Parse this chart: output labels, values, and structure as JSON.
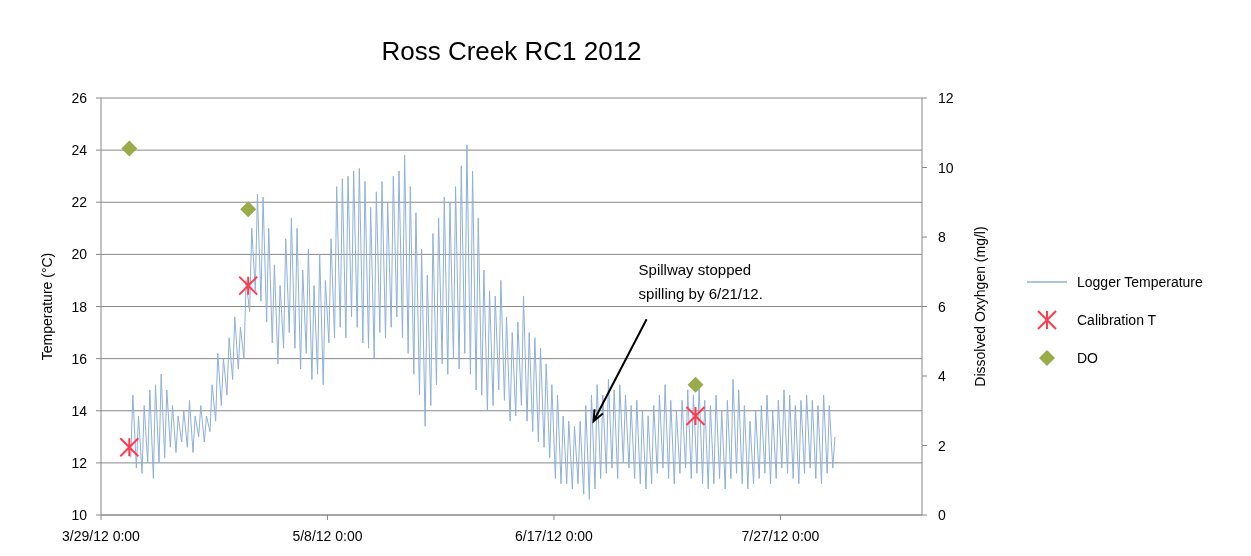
{
  "chart_data": {
    "type": "line",
    "title": "Ross Creek RC1 2012",
    "ylabel": "Temperature (°C)",
    "y2label": "Dissolved Oxyhgen (mg/l)",
    "xlim": [
      "2012-03-29",
      "2012-08-21"
    ],
    "xticks": [
      {
        "value": "2012-03-29",
        "label": "3/29/12 0:00"
      },
      {
        "value": "2012-05-08",
        "label": "5/8/12 0:00"
      },
      {
        "value": "2012-06-17",
        "label": "6/17/12 0:00"
      },
      {
        "value": "2012-07-27",
        "label": "7/27/12 0:00"
      }
    ],
    "ylim": [
      10,
      26
    ],
    "yticks": [
      10,
      12,
      14,
      16,
      18,
      20,
      22,
      24,
      26
    ],
    "y2lim": [
      0,
      12
    ],
    "y2ticks": [
      0,
      2,
      4,
      6,
      8,
      10,
      12
    ],
    "grid": "y",
    "legend": "right",
    "annotations": [
      {
        "text": "Spillway stopped spilling by 6/21/12.",
        "x": "2012-06-24",
        "y": 13.6
      }
    ],
    "series": [
      {
        "name": "Logger Temperature",
        "color": "#8fb0d8",
        "marker": "none",
        "line_style": "solid",
        "x": [
          "2012-04-03T06:00",
          "2012-04-03T15:00",
          "2012-04-04T06:00",
          "2012-04-04T15:00",
          "2012-04-05T06:00",
          "2012-04-05T15:00",
          "2012-04-06T06:00",
          "2012-04-06T15:00",
          "2012-04-07T06:00",
          "2012-04-07T15:00",
          "2012-04-08T06:00",
          "2012-04-08T15:00",
          "2012-04-09T06:00",
          "2012-04-09T15:00",
          "2012-04-10T06:00",
          "2012-04-10T15:00",
          "2012-04-11T06:00",
          "2012-04-11T15:00",
          "2012-04-12T06:00",
          "2012-04-12T15:00",
          "2012-04-13T06:00",
          "2012-04-13T15:00",
          "2012-04-14T06:00",
          "2012-04-14T15:00",
          "2012-04-15T06:00",
          "2012-04-15T15:00",
          "2012-04-16T06:00",
          "2012-04-16T15:00",
          "2012-04-17T06:00",
          "2012-04-17T15:00",
          "2012-04-18T06:00",
          "2012-04-18T15:00",
          "2012-04-19T06:00",
          "2012-04-19T15:00",
          "2012-04-20T06:00",
          "2012-04-20T15:00",
          "2012-04-21T06:00",
          "2012-04-21T15:00",
          "2012-04-22T06:00",
          "2012-04-22T15:00",
          "2012-04-23T06:00",
          "2012-04-23T15:00",
          "2012-04-24T06:00",
          "2012-04-24T15:00",
          "2012-04-25T06:00",
          "2012-04-25T15:00",
          "2012-04-26T06:00",
          "2012-04-26T15:00",
          "2012-04-27T06:00",
          "2012-04-27T15:00",
          "2012-04-28T06:00",
          "2012-04-28T15:00",
          "2012-04-29T06:00",
          "2012-04-29T15:00",
          "2012-04-30T06:00",
          "2012-04-30T15:00",
          "2012-05-01T06:00",
          "2012-05-01T15:00",
          "2012-05-02T06:00",
          "2012-05-02T15:00",
          "2012-05-03T06:00",
          "2012-05-03T15:00",
          "2012-05-04T06:00",
          "2012-05-04T15:00",
          "2012-05-05T06:00",
          "2012-05-05T15:00",
          "2012-05-06T06:00",
          "2012-05-06T15:00",
          "2012-05-07T06:00",
          "2012-05-07T15:00",
          "2012-05-08T06:00",
          "2012-05-08T15:00",
          "2012-05-09T06:00",
          "2012-05-09T15:00",
          "2012-05-10T06:00",
          "2012-05-10T15:00",
          "2012-05-11T06:00",
          "2012-05-11T15:00",
          "2012-05-12T06:00",
          "2012-05-12T15:00",
          "2012-05-13T06:00",
          "2012-05-13T15:00",
          "2012-05-14T06:00",
          "2012-05-14T15:00",
          "2012-05-15T06:00",
          "2012-05-15T15:00",
          "2012-05-16T06:00",
          "2012-05-16T15:00",
          "2012-05-17T06:00",
          "2012-05-17T15:00",
          "2012-05-18T06:00",
          "2012-05-18T15:00",
          "2012-05-19T06:00",
          "2012-05-19T15:00",
          "2012-05-20T06:00",
          "2012-05-20T15:00",
          "2012-05-21T06:00",
          "2012-05-21T15:00",
          "2012-05-22T06:00",
          "2012-05-22T15:00",
          "2012-05-23T06:00",
          "2012-05-23T15:00",
          "2012-05-24T06:00",
          "2012-05-24T15:00",
          "2012-05-25T06:00",
          "2012-05-25T15:00",
          "2012-05-26T06:00",
          "2012-05-26T15:00",
          "2012-05-27T06:00",
          "2012-05-27T15:00",
          "2012-05-28T06:00",
          "2012-05-28T15:00",
          "2012-05-29T06:00",
          "2012-05-29T15:00",
          "2012-05-30T06:00",
          "2012-05-30T15:00",
          "2012-05-31T06:00",
          "2012-05-31T15:00",
          "2012-06-01T06:00",
          "2012-06-01T15:00",
          "2012-06-02T06:00",
          "2012-06-02T15:00",
          "2012-06-03T06:00",
          "2012-06-03T15:00",
          "2012-06-04T06:00",
          "2012-06-04T15:00",
          "2012-06-05T06:00",
          "2012-06-05T15:00",
          "2012-06-06T06:00",
          "2012-06-06T15:00",
          "2012-06-07T06:00",
          "2012-06-07T15:00",
          "2012-06-08T06:00",
          "2012-06-08T15:00",
          "2012-06-09T06:00",
          "2012-06-09T15:00",
          "2012-06-10T06:00",
          "2012-06-10T15:00",
          "2012-06-11T06:00",
          "2012-06-11T15:00",
          "2012-06-12T06:00",
          "2012-06-12T15:00",
          "2012-06-13T06:00",
          "2012-06-13T15:00",
          "2012-06-14T06:00",
          "2012-06-14T15:00",
          "2012-06-15T06:00",
          "2012-06-15T15:00",
          "2012-06-16T06:00",
          "2012-06-16T15:00",
          "2012-06-17T06:00",
          "2012-06-17T15:00",
          "2012-06-18T06:00",
          "2012-06-18T15:00",
          "2012-06-19T06:00",
          "2012-06-19T15:00",
          "2012-06-20T06:00",
          "2012-06-20T15:00",
          "2012-06-21T06:00",
          "2012-06-21T15:00",
          "2012-06-22T06:00",
          "2012-06-22T15:00",
          "2012-06-23T06:00",
          "2012-06-23T15:00",
          "2012-06-24T06:00",
          "2012-06-24T15:00",
          "2012-06-25T06:00",
          "2012-06-25T15:00",
          "2012-06-26T06:00",
          "2012-06-26T15:00",
          "2012-06-27T06:00",
          "2012-06-27T15:00",
          "2012-06-28T06:00",
          "2012-06-28T15:00",
          "2012-06-29T06:00",
          "2012-06-29T15:00",
          "2012-06-30T06:00",
          "2012-06-30T15:00",
          "2012-07-01T06:00",
          "2012-07-01T15:00",
          "2012-07-02T06:00",
          "2012-07-02T15:00",
          "2012-07-03T06:00",
          "2012-07-03T15:00",
          "2012-07-04T06:00",
          "2012-07-04T15:00",
          "2012-07-05T06:00",
          "2012-07-05T15:00",
          "2012-07-06T06:00",
          "2012-07-06T15:00",
          "2012-07-07T06:00",
          "2012-07-07T15:00",
          "2012-07-08T06:00",
          "2012-07-08T15:00",
          "2012-07-09T06:00",
          "2012-07-09T15:00",
          "2012-07-10T06:00",
          "2012-07-10T15:00",
          "2012-07-11T06:00",
          "2012-07-11T15:00",
          "2012-07-12T06:00",
          "2012-07-12T15:00",
          "2012-07-13T06:00",
          "2012-07-13T15:00",
          "2012-07-14T06:00",
          "2012-07-14T15:00",
          "2012-07-15T06:00",
          "2012-07-15T15:00",
          "2012-07-16T06:00",
          "2012-07-16T15:00",
          "2012-07-17T06:00",
          "2012-07-17T15:00",
          "2012-07-18T06:00",
          "2012-07-18T15:00",
          "2012-07-19T06:00",
          "2012-07-19T15:00",
          "2012-07-20T06:00",
          "2012-07-20T15:00",
          "2012-07-21T06:00",
          "2012-07-21T15:00",
          "2012-07-22T06:00",
          "2012-07-22T15:00",
          "2012-07-23T06:00",
          "2012-07-23T15:00",
          "2012-07-24T06:00",
          "2012-07-24T15:00",
          "2012-07-25T06:00",
          "2012-07-25T15:00",
          "2012-07-26T06:00",
          "2012-07-26T15:00",
          "2012-07-27T06:00",
          "2012-07-27T15:00",
          "2012-07-28T06:00",
          "2012-07-28T15:00",
          "2012-07-29T06:00",
          "2012-07-29T15:00",
          "2012-07-30T06:00",
          "2012-07-30T15:00",
          "2012-07-31T06:00",
          "2012-07-31T15:00",
          "2012-08-01T06:00",
          "2012-08-01T15:00",
          "2012-08-02T06:00",
          "2012-08-02T15:00",
          "2012-08-03T06:00",
          "2012-08-03T15:00",
          "2012-08-04T06:00",
          "2012-08-04T15:00",
          "2012-08-05T06:00",
          "2012-08-05T15:00"
        ],
        "values": [
          12.2,
          14.6,
          11.8,
          13.8,
          11.6,
          14.2,
          12.0,
          14.8,
          11.4,
          15.0,
          12.0,
          15.4,
          12.2,
          14.8,
          12.6,
          14.2,
          12.4,
          13.8,
          12.8,
          14.0,
          12.6,
          14.4,
          12.4,
          13.8,
          13.0,
          14.2,
          12.8,
          13.8,
          13.2,
          15.0,
          13.6,
          16.2,
          14.2,
          16.0,
          14.6,
          16.8,
          15.2,
          17.6,
          15.6,
          17.2,
          16.0,
          19.0,
          17.8,
          21.0,
          18.6,
          22.3,
          18.2,
          22.2,
          17.4,
          21.0,
          16.6,
          19.6,
          15.8,
          18.8,
          16.4,
          20.6,
          17.0,
          21.4,
          16.4,
          21.0,
          15.6,
          19.4,
          16.2,
          20.2,
          15.2,
          18.8,
          15.4,
          20.0,
          15.0,
          19.0,
          16.6,
          20.6,
          16.8,
          22.6,
          17.2,
          22.9,
          16.8,
          23.0,
          17.6,
          23.2,
          17.2,
          23.3,
          16.6,
          22.8,
          16.4,
          21.8,
          16.0,
          22.4,
          17.0,
          22.8,
          16.8,
          22.0,
          17.2,
          23.0,
          17.6,
          23.2,
          16.8,
          23.8,
          16.2,
          22.6,
          15.4,
          21.6,
          14.6,
          20.2,
          13.4,
          19.2,
          14.2,
          20.8,
          15.0,
          21.4,
          15.8,
          22.2,
          15.4,
          22.0,
          16.0,
          22.6,
          15.6,
          23.4,
          16.2,
          24.2,
          15.4,
          23.2,
          14.8,
          21.4,
          14.6,
          19.4,
          14.0,
          18.6,
          14.2,
          18.4,
          14.8,
          19.0,
          14.4,
          17.6,
          13.6,
          17.0,
          13.8,
          17.4,
          14.2,
          18.4,
          13.6,
          17.0,
          13.2,
          16.8,
          12.8,
          16.4,
          12.6,
          15.8,
          12.2,
          15.0,
          11.4,
          14.6,
          11.2,
          13.8,
          11.2,
          13.6,
          11.0,
          13.4,
          11.2,
          13.6,
          10.8,
          14.2,
          10.6,
          14.6,
          11.0,
          15.0,
          11.4,
          14.6,
          11.6,
          15.2,
          11.8,
          14.8,
          11.4,
          15.0,
          12.0,
          14.6,
          11.8,
          14.2,
          11.4,
          14.4,
          11.2,
          14.0,
          11.0,
          13.8,
          11.2,
          14.2,
          11.6,
          14.6,
          11.8,
          15.0,
          11.4,
          14.4,
          11.2,
          14.0,
          11.6,
          14.4,
          11.8,
          14.8,
          11.4,
          14.6,
          11.6,
          15.0,
          11.2,
          14.4,
          11.0,
          14.2,
          11.2,
          14.6,
          11.4,
          14.0,
          11.0,
          14.4,
          11.4,
          15.2,
          11.6,
          14.8,
          11.2,
          14.2,
          11.0,
          13.6,
          11.2,
          14.0,
          11.4,
          14.2,
          11.6,
          14.6,
          11.2,
          14.0,
          11.4,
          14.4,
          11.8,
          14.8,
          11.6,
          14.6,
          11.4,
          14.2,
          11.2,
          14.4,
          11.6,
          14.6,
          11.8,
          14.4,
          11.4,
          14.2,
          11.2,
          14.6,
          11.6,
          14.2,
          11.8,
          13.0
        ]
      },
      {
        "name": "Calibration T",
        "type": "scatter",
        "color": "#ff3b4e",
        "marker": "cross",
        "x": [
          "2012-04-03",
          "2012-04-24",
          "2012-07-12"
        ],
        "values": [
          12.6,
          18.8,
          13.8
        ]
      },
      {
        "name": "DO",
        "type": "scatter",
        "color": "#9aab4a",
        "marker": "diamond",
        "axis": "y2",
        "x": [
          "2012-04-03",
          "2012-04-24",
          "2012-07-12"
        ],
        "values": [
          10.55,
          8.8,
          3.75
        ]
      }
    ]
  }
}
